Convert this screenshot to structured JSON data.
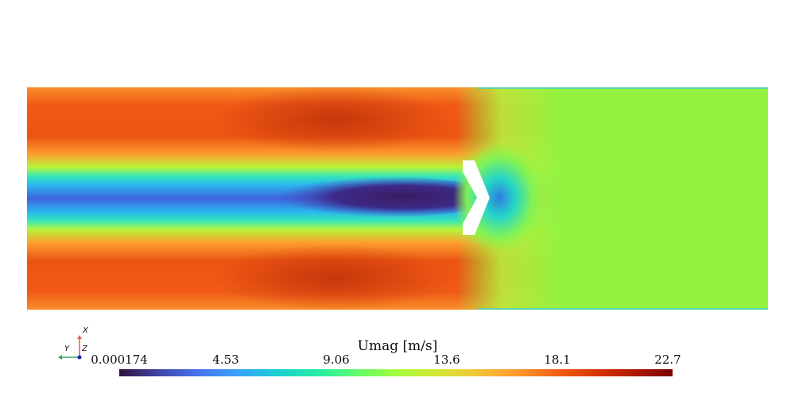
{
  "field": {
    "name": "Umag [m/s]",
    "colormap": "turbo",
    "range": [
      0.000174,
      22.7
    ],
    "colors": {
      "background": "#ffffff",
      "far_field": "#94f241",
      "high_speed": "#c43a0a",
      "wake_core": "#3a1c62"
    }
  },
  "colorbar": {
    "title": "Umag [m/s]",
    "ticks": [
      "0.000174",
      "4.53",
      "9.06",
      "13.6",
      "18.1",
      "22.7"
    ],
    "stops": [
      "#30123b",
      "#4145ab",
      "#4675ed",
      "#39a2fc",
      "#1bcfd4",
      "#24eca6",
      "#61fc6c",
      "#a4fc3b",
      "#d1e834",
      "#f3c63a",
      "#fe9b2d",
      "#f36315",
      "#d93806",
      "#b11901",
      "#7a0402"
    ]
  },
  "axes_widget": {
    "labels": [
      "X",
      "Y",
      "Z"
    ],
    "colors": {
      "x": "#e8594a",
      "y": "#3aa35a",
      "z": "#2020c0"
    }
  }
}
